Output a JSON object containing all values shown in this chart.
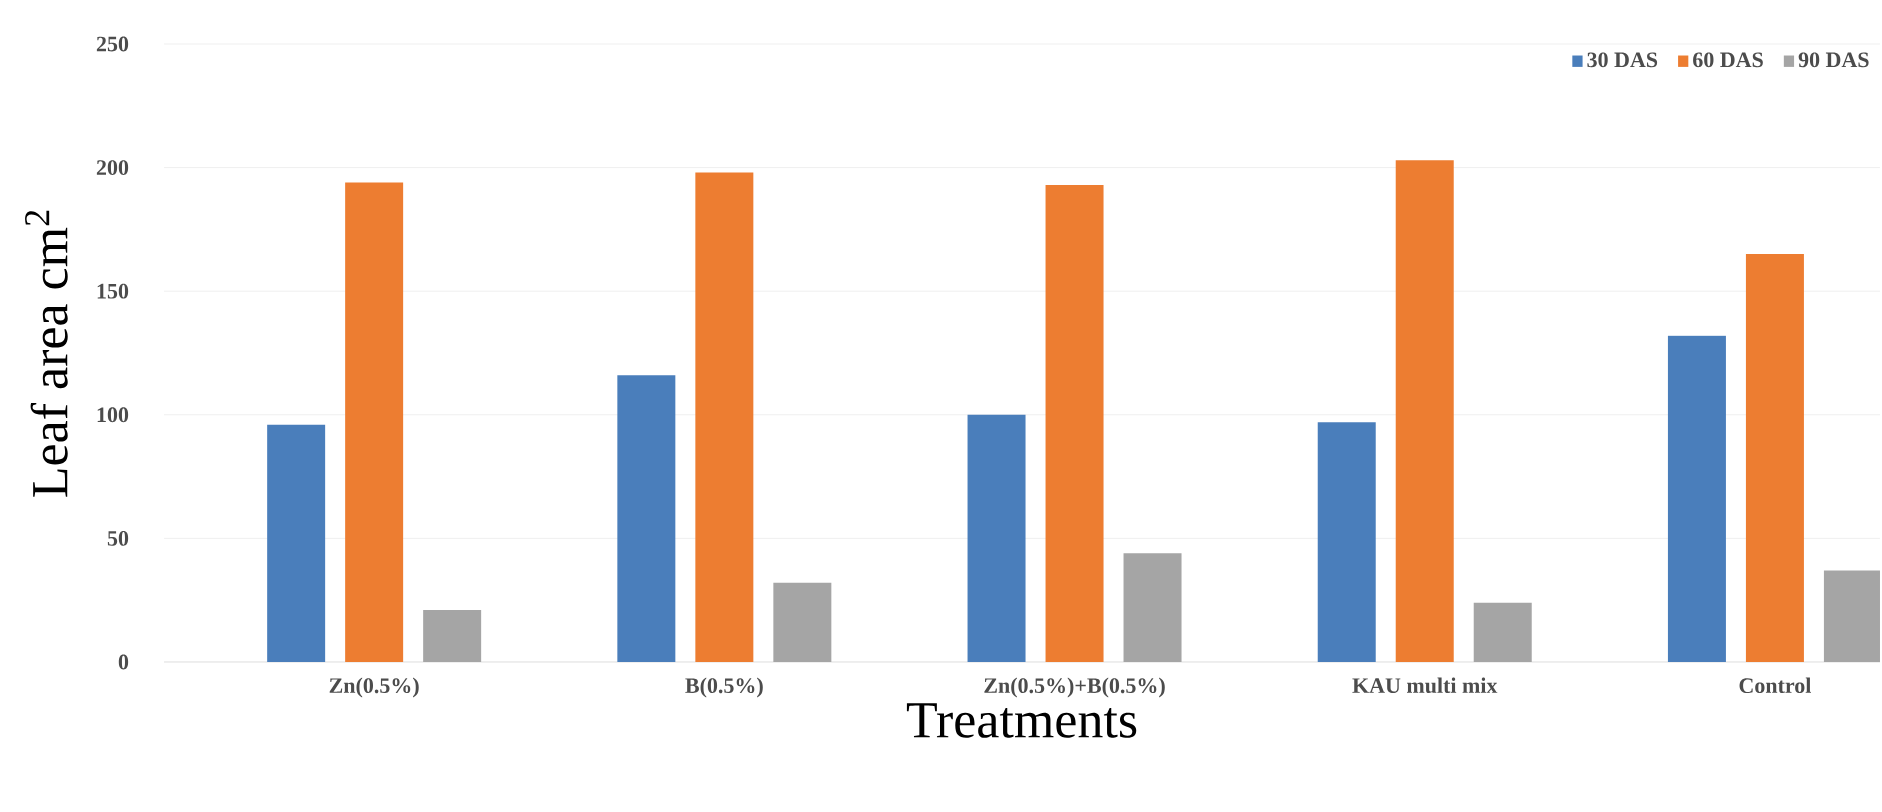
{
  "chart_data": {
    "type": "bar",
    "xlabel": "Treatments",
    "ylabel": "Leaf area cm$^{2}$",
    "categories": [
      "Zn(0.5%)",
      "B(0.5%)",
      "Zn(0.5%)+B(0.5%)",
      "KAU multi mix",
      "Control"
    ],
    "series": [
      {
        "name": "30 DAS",
        "color": "#4a7ebb",
        "values": [
          96,
          116,
          100,
          97,
          132
        ]
      },
      {
        "name": "60 DAS",
        "color": "#ed7d31",
        "values": [
          194,
          198,
          193,
          203,
          165
        ]
      },
      {
        "name": "90 DAS",
        "color": "#a5a5a5",
        "values": [
          21,
          32,
          44,
          24,
          37
        ]
      }
    ],
    "ylim": [
      0,
      250
    ],
    "yticks": [
      0,
      50,
      100,
      150,
      200,
      250
    ],
    "grid": "y",
    "legend": "top right"
  }
}
